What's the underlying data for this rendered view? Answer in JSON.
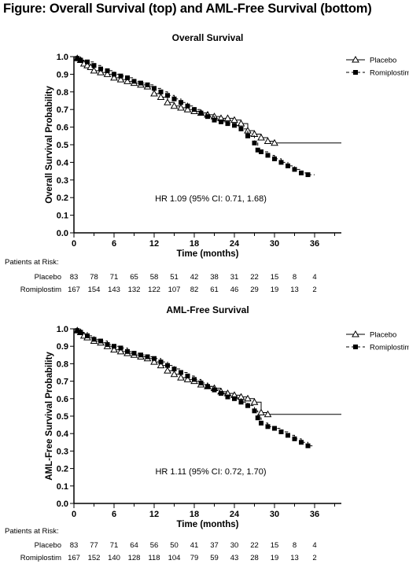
{
  "figure_title": "Figure: Overall Survival (top) and AML-Free Survival (bottom)",
  "chart_data": [
    {
      "type": "line",
      "title": "Overall Survival",
      "xlabel": "Time (months)",
      "ylabel": "Overall Survival Probability",
      "xlim": [
        0,
        40
      ],
      "ylim": [
        0,
        1.0
      ],
      "xticks": [
        0,
        6,
        12,
        18,
        24,
        30,
        36
      ],
      "yticks": [
        "0.0",
        "0.1",
        "0.2",
        "0.3",
        "0.4",
        "0.5",
        "0.6",
        "0.7",
        "0.8",
        "0.9",
        "1.0"
      ],
      "legend_position": "top-right",
      "annotation": "HR 1.09 (95% CI: 0.71, 1.68)",
      "series": [
        {
          "name": "Placebo",
          "marker": "open-triangle",
          "line": "solid",
          "x": [
            0,
            0.5,
            1,
            1.5,
            2,
            2.5,
            3,
            4,
            5,
            6,
            7,
            8,
            9,
            10,
            11,
            12,
            13,
            14,
            15,
            16,
            17,
            18,
            19,
            20,
            21,
            22,
            23,
            24,
            25,
            26,
            27,
            28,
            29,
            30,
            40
          ],
          "y": [
            1.0,
            0.99,
            0.98,
            0.96,
            0.95,
            0.94,
            0.92,
            0.91,
            0.9,
            0.88,
            0.87,
            0.86,
            0.85,
            0.84,
            0.83,
            0.79,
            0.77,
            0.74,
            0.72,
            0.71,
            0.7,
            0.69,
            0.68,
            0.67,
            0.66,
            0.65,
            0.65,
            0.64,
            0.62,
            0.58,
            0.56,
            0.54,
            0.52,
            0.51,
            0.51
          ]
        },
        {
          "name": "Romiplostim",
          "marker": "filled-square",
          "line": "dashed",
          "x": [
            0,
            0.5,
            1,
            2,
            3,
            4,
            5,
            6,
            7,
            8,
            9,
            10,
            11,
            12,
            13,
            14,
            15,
            16,
            17,
            18,
            19,
            20,
            21,
            22,
            23,
            24,
            25,
            26,
            27,
            27.5,
            28,
            29,
            30,
            31,
            32,
            33,
            34,
            35,
            36
          ],
          "y": [
            1.0,
            0.99,
            0.98,
            0.97,
            0.95,
            0.93,
            0.92,
            0.9,
            0.89,
            0.88,
            0.86,
            0.85,
            0.84,
            0.82,
            0.8,
            0.78,
            0.76,
            0.74,
            0.72,
            0.7,
            0.68,
            0.66,
            0.64,
            0.63,
            0.62,
            0.61,
            0.59,
            0.55,
            0.51,
            0.47,
            0.46,
            0.44,
            0.42,
            0.4,
            0.38,
            0.36,
            0.34,
            0.33,
            0.33
          ]
        }
      ],
      "risk_table": {
        "label": "Patients at Risk:",
        "rows": [
          {
            "name": "Placebo",
            "values": [
              "83",
              "78",
              "71",
              "65",
              "58",
              "51",
              "42",
              "38",
              "31",
              "22",
              "15",
              "8",
              "4"
            ]
          },
          {
            "name": "Romiplostim",
            "values": [
              "167",
              "154",
              "143",
              "132",
              "122",
              "107",
              "82",
              "61",
              "46",
              "29",
              "19",
              "13",
              "2"
            ]
          }
        ]
      }
    },
    {
      "type": "line",
      "title": "AML-Free Survival",
      "xlabel": "Time (months)",
      "ylabel": "AML-Free Survival Probability",
      "xlim": [
        0,
        40
      ],
      "ylim": [
        0,
        1.0
      ],
      "xticks": [
        0,
        6,
        12,
        18,
        24,
        30,
        36
      ],
      "yticks": [
        "0.0",
        "0.1",
        "0.2",
        "0.3",
        "0.4",
        "0.5",
        "0.6",
        "0.7",
        "0.8",
        "0.9",
        "1.0"
      ],
      "legend_position": "top-right",
      "annotation": "HR 1.11 (95% CI: 0.72, 1.70)",
      "series": [
        {
          "name": "Placebo",
          "marker": "open-triangle",
          "line": "solid",
          "x": [
            0,
            0.5,
            1,
            1.5,
            2,
            3,
            4,
            5,
            6,
            7,
            8,
            9,
            10,
            11,
            12,
            13,
            14,
            15,
            16,
            17,
            18,
            19,
            20,
            21,
            22,
            23,
            24,
            25,
            26,
            27,
            28,
            29,
            40
          ],
          "y": [
            1.0,
            0.99,
            0.98,
            0.96,
            0.95,
            0.93,
            0.92,
            0.9,
            0.88,
            0.87,
            0.86,
            0.85,
            0.84,
            0.83,
            0.81,
            0.79,
            0.76,
            0.74,
            0.72,
            0.71,
            0.7,
            0.68,
            0.67,
            0.66,
            0.64,
            0.63,
            0.62,
            0.61,
            0.6,
            0.58,
            0.52,
            0.51,
            0.51
          ]
        },
        {
          "name": "Romiplostim",
          "marker": "filled-square",
          "line": "dashed",
          "x": [
            0,
            0.5,
            1,
            2,
            3,
            4,
            5,
            6,
            7,
            8,
            9,
            10,
            11,
            12,
            13,
            14,
            15,
            16,
            17,
            18,
            19,
            20,
            21,
            22,
            23,
            24,
            25,
            26,
            27,
            27.5,
            28,
            29,
            30,
            31,
            32,
            33,
            34,
            35,
            36
          ],
          "y": [
            1.0,
            0.99,
            0.98,
            0.96,
            0.94,
            0.93,
            0.91,
            0.9,
            0.89,
            0.87,
            0.86,
            0.85,
            0.84,
            0.83,
            0.81,
            0.79,
            0.77,
            0.75,
            0.73,
            0.71,
            0.69,
            0.67,
            0.65,
            0.63,
            0.61,
            0.6,
            0.58,
            0.56,
            0.53,
            0.49,
            0.46,
            0.44,
            0.43,
            0.41,
            0.39,
            0.37,
            0.35,
            0.33,
            0.33
          ]
        }
      ],
      "risk_table": {
        "label": "Patients at Risk:",
        "rows": [
          {
            "name": "Placebo",
            "values": [
              "83",
              "77",
              "71",
              "64",
              "56",
              "50",
              "41",
              "37",
              "30",
              "22",
              "15",
              "8",
              "4"
            ]
          },
          {
            "name": "Romiplostim",
            "values": [
              "167",
              "152",
              "140",
              "128",
              "118",
              "104",
              "79",
              "59",
              "43",
              "28",
              "19",
              "13",
              "2"
            ]
          }
        ]
      }
    }
  ]
}
